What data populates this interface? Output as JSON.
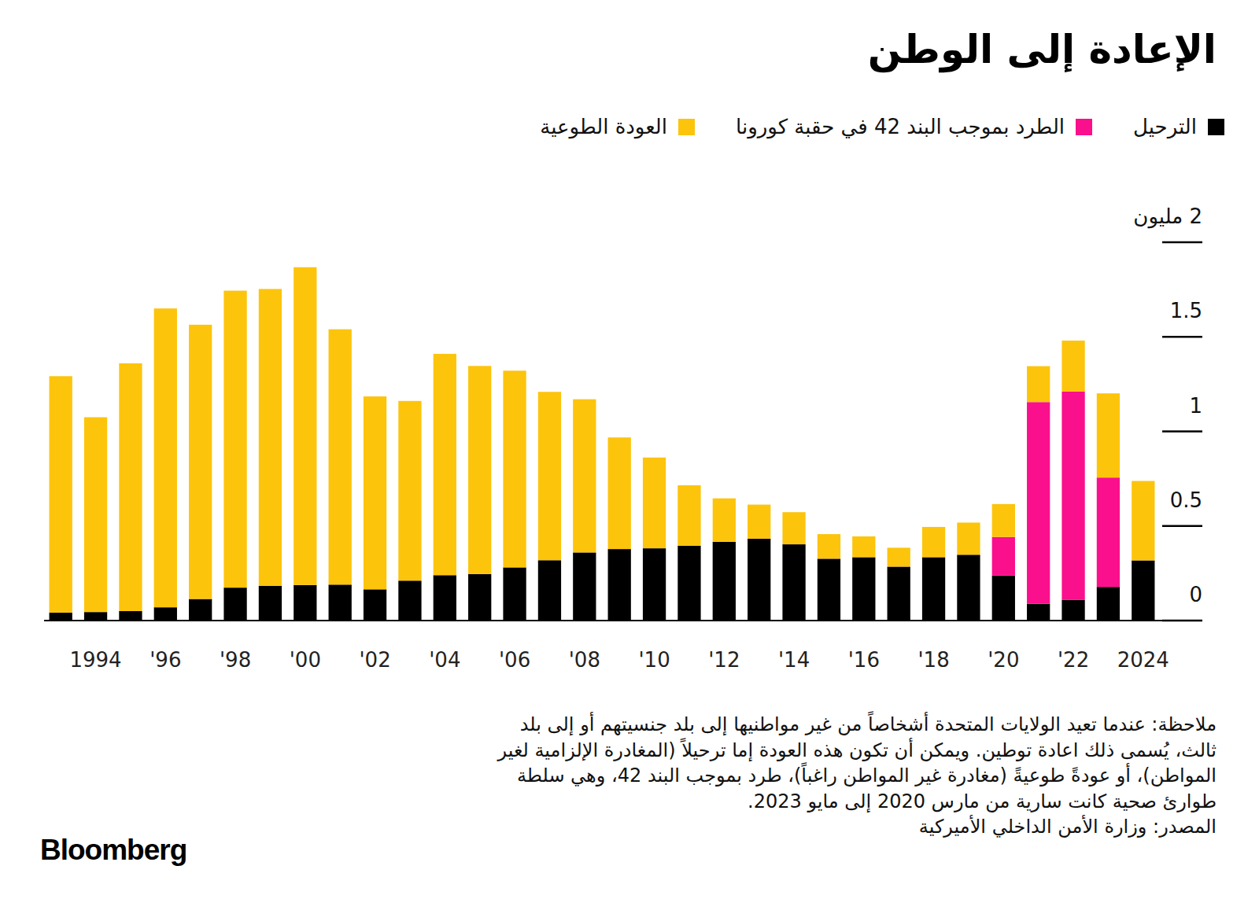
{
  "chart_data": {
    "type": "bar",
    "title": "الإعادة إلى الوطن",
    "stacked": true,
    "grid": false,
    "legend": "top-right",
    "categories": [
      null,
      "1994",
      null,
      "'96",
      null,
      "'98",
      null,
      "'00",
      null,
      "'02",
      null,
      "'04",
      null,
      "'06",
      null,
      "'08",
      null,
      "'10",
      null,
      "'12",
      null,
      "'14",
      null,
      "'16",
      null,
      "'18",
      null,
      "'20",
      null,
      "'22",
      null,
      "2024"
    ],
    "series": [
      {
        "name": "الترحيل",
        "color": "#000000",
        "values": [
          0.042,
          0.045,
          0.05,
          0.07,
          0.114,
          0.174,
          0.183,
          0.188,
          0.19,
          0.165,
          0.211,
          0.24,
          0.246,
          0.281,
          0.319,
          0.36,
          0.378,
          0.382,
          0.395,
          0.416,
          0.433,
          0.403,
          0.327,
          0.335,
          0.285,
          0.335,
          0.348,
          0.238,
          0.089,
          0.11,
          0.178,
          0.318
        ]
      },
      {
        "name": "الطرد بموجب البند 42 في حقبة كورونا",
        "color": "#fa0f8c",
        "values": [
          null,
          null,
          null,
          null,
          null,
          null,
          null,
          null,
          null,
          null,
          null,
          null,
          null,
          null,
          null,
          null,
          null,
          null,
          null,
          null,
          null,
          null,
          null,
          null,
          null,
          null,
          null,
          0.204,
          1.066,
          1.1,
          0.578,
          null
        ]
      },
      {
        "name": "العودة الطوعية",
        "color": "#fdc40c",
        "values": [
          1.25,
          1.03,
          1.31,
          1.58,
          1.45,
          1.57,
          1.57,
          1.68,
          1.35,
          1.02,
          0.95,
          1.17,
          1.1,
          1.04,
          0.89,
          0.81,
          0.59,
          0.48,
          0.32,
          0.23,
          0.18,
          0.17,
          0.13,
          0.11,
          0.1,
          0.16,
          0.17,
          0.174,
          0.19,
          0.27,
          0.445,
          0.42
        ]
      }
    ],
    "ylim": [
      0,
      2
    ],
    "yticks": [
      0,
      0.5,
      1,
      1.5,
      {
        "value": 2,
        "label": "2 مليون"
      }
    ],
    "note": [
      "ملاحظة: عندما تعيد الولايات المتحدة أشخاصاً من غير مواطنيها إلى بلد جنسيتهم أو إلى بلد",
      "ثالث، يُسمى ذلك اعادة توطين. ويمكن أن تكون هذه العودة إما ترحيلاً (المغادرة الإلزامية لغير",
      "المواطن)، أو عودةً طوعيةً (مغادرة غير المواطن راغباً)، طرد بموجب البند 42، وهي سلطة",
      "طوارئ صحية كانت سارية من مارس 2020 إلى مايو 2023."
    ],
    "source": "المصدر: وزارة الأمن الداخلي الأميركية",
    "brand": "Bloomberg"
  }
}
